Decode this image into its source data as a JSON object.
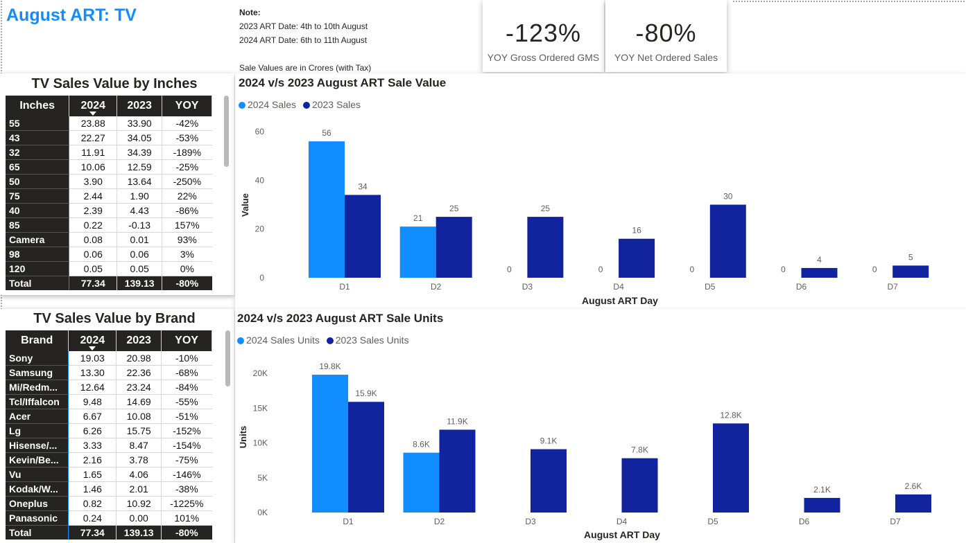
{
  "page_title": "August ART: TV",
  "note": {
    "heading": "Note:",
    "line1": "2023 ART Date: 4th to 10th August",
    "line2": "2024 ART Date: 6th to 11th August",
    "line3": "Sale Values are in Crores (with Tax)"
  },
  "kpis": [
    {
      "value": "-123%",
      "label": "YOY Gross Ordered GMS"
    },
    {
      "value": "-80%",
      "label": "YOY Net Ordered Sales"
    }
  ],
  "colors": {
    "series_2024": "#118dff",
    "series_2023": "#12239e",
    "table_header": "#252423"
  },
  "inches_table": {
    "title": "TV Sales Value by Inches",
    "headers": [
      "Inches",
      "2024",
      "2023",
      "YOY"
    ],
    "rows": [
      [
        "55",
        "23.88",
        "33.90",
        "-42%"
      ],
      [
        "43",
        "22.27",
        "34.05",
        "-53%"
      ],
      [
        "32",
        "11.91",
        "34.39",
        "-189%"
      ],
      [
        "65",
        "10.06",
        "12.59",
        "-25%"
      ],
      [
        "50",
        "3.90",
        "13.64",
        "-250%"
      ],
      [
        "75",
        "2.44",
        "1.90",
        "22%"
      ],
      [
        "40",
        "2.39",
        "4.43",
        "-86%"
      ],
      [
        "85",
        "0.22",
        "-0.13",
        "157%"
      ],
      [
        "Camera",
        "0.08",
        "0.01",
        "93%"
      ],
      [
        "98",
        "0.06",
        "0.06",
        "3%"
      ],
      [
        "120",
        "0.05",
        "0.05",
        "0%"
      ]
    ],
    "total": [
      "Total",
      "77.34",
      "139.13",
      "-80%"
    ]
  },
  "brand_table": {
    "title": "TV Sales Value by Brand",
    "headers": [
      "Brand",
      "2024",
      "2023",
      "YOY"
    ],
    "rows": [
      [
        "Sony",
        "19.03",
        "20.98",
        "-10%"
      ],
      [
        "Samsung",
        "13.30",
        "22.36",
        "-68%"
      ],
      [
        "Mi/Redm...",
        "12.64",
        "23.24",
        "-84%"
      ],
      [
        "Tcl/Iffalcon",
        "9.48",
        "14.69",
        "-55%"
      ],
      [
        "Acer",
        "6.67",
        "10.08",
        "-51%"
      ],
      [
        "Lg",
        "6.26",
        "15.75",
        "-152%"
      ],
      [
        "Hisense/...",
        "3.33",
        "8.47",
        "-154%"
      ],
      [
        "Kevin/Be...",
        "2.16",
        "3.78",
        "-75%"
      ],
      [
        "Vu",
        "1.65",
        "4.06",
        "-146%"
      ],
      [
        "Kodak/W...",
        "1.46",
        "2.01",
        "-38%"
      ],
      [
        "Oneplus",
        "0.82",
        "10.92",
        "-1225%"
      ],
      [
        "Panasonic",
        "0.24",
        "0.00",
        "101%"
      ]
    ],
    "total": [
      "Total",
      "77.34",
      "139.13",
      "-80%"
    ]
  },
  "chart_data": [
    {
      "type": "bar",
      "title": "2024 v/s 2023 August ART Sale Value",
      "xlabel": "August ART Day",
      "ylabel": "Value",
      "categories": [
        "D1",
        "D2",
        "D3",
        "D4",
        "D5",
        "D6",
        "D7"
      ],
      "series": [
        {
          "name": "2024 Sales",
          "values": [
            56,
            21,
            0,
            0,
            0,
            0,
            0
          ],
          "labels": [
            "56",
            "21",
            "0",
            "0",
            "0",
            "0",
            "0"
          ]
        },
        {
          "name": "2023 Sales",
          "values": [
            34,
            25,
            25,
            16,
            30,
            4,
            5
          ],
          "labels": [
            "34",
            "25",
            "25",
            "16",
            "30",
            "4",
            "5"
          ]
        }
      ],
      "ylim": [
        0,
        60
      ],
      "yticks": [
        0,
        20,
        40,
        60
      ],
      "ytick_labels": [
        "0",
        "20",
        "40",
        "60"
      ],
      "legend": "top-left",
      "grid": false
    },
    {
      "type": "bar",
      "title": "2024 v/s 2023 August ART Sale Units",
      "xlabel": "August ART Day",
      "ylabel": "Units",
      "categories": [
        "D1",
        "D2",
        "D3",
        "D4",
        "D5",
        "D6",
        "D7"
      ],
      "series": [
        {
          "name": "2024 Sales Units",
          "values": [
            19800,
            8600,
            0,
            0,
            0,
            0,
            0
          ],
          "labels": [
            "19.8K",
            "8.6K",
            "",
            "",
            "",
            "",
            ""
          ]
        },
        {
          "name": "2023 Sales Units",
          "values": [
            15900,
            11900,
            9100,
            7800,
            12800,
            2100,
            2600
          ],
          "labels": [
            "15.9K",
            "11.9K",
            "9.1K",
            "7.8K",
            "12.8K",
            "2.1K",
            "2.6K"
          ]
        }
      ],
      "ylim": [
        0,
        20000
      ],
      "yticks": [
        0,
        5000,
        10000,
        15000,
        20000
      ],
      "ytick_labels": [
        "0K",
        "5K",
        "10K",
        "15K",
        "20K"
      ],
      "legend": "top-left",
      "grid": false
    }
  ]
}
